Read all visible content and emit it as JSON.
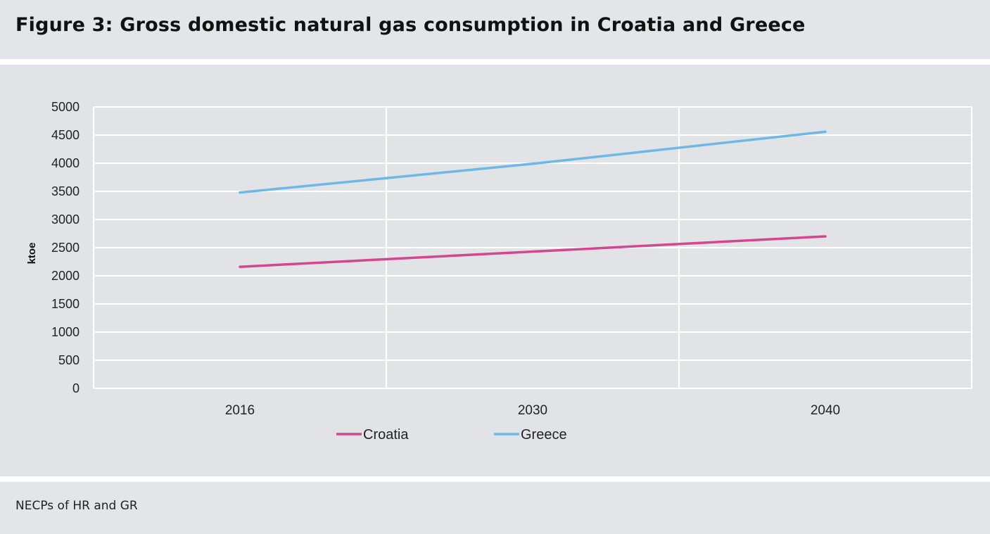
{
  "figure": {
    "title": "Figure 3: Gross domestic natural gas consumption in Croatia and Greece",
    "source": "NECPs of HR and GR"
  },
  "chart_data": {
    "type": "line",
    "ylabel": "ktoe",
    "xlabel": "",
    "categories": [
      "2016",
      "2030",
      "2040"
    ],
    "y_ticks": [
      "0",
      "500",
      "1000",
      "1500",
      "2000",
      "2500",
      "3000",
      "3500",
      "4000",
      "4500",
      "5000"
    ],
    "ylim": [
      0,
      5000
    ],
    "grid": true,
    "legend_position": "bottom",
    "series": [
      {
        "name": "Croatia",
        "color": "#d4468f",
        "values": [
          2160,
          2430,
          2700
        ]
      },
      {
        "name": "Greece",
        "color": "#6bb9e4",
        "values": [
          3480,
          3990,
          4560
        ]
      }
    ]
  }
}
